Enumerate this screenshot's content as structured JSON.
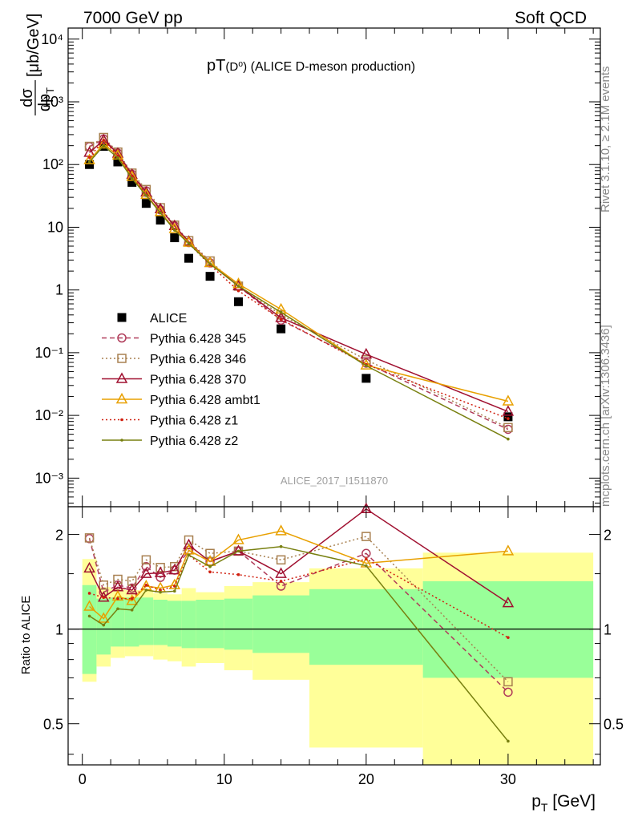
{
  "header": {
    "left_label": "7000 GeV pp",
    "right_label": "Soft QCD"
  },
  "side": {
    "rivet_label": "Rivet 3.1.10, ≥ 2.1M events",
    "source_label": "mcplots.cern.ch [arXiv:1306.3436]"
  },
  "chart_data": [
    {
      "type": "line",
      "panel": "main",
      "title": "pT(D⁰) (ALICE D-meson production)",
      "title_main": "pT",
      "title_paren": "(D⁰)",
      "title_rest": " (ALICE D-meson production)",
      "ylabel": "dσ / dp_T [μb/GeV]",
      "ylabel_num": "dσ",
      "ylabel_den": "dp",
      "ylabel_sub": "T",
      "ylabel_unit": "[μb/GeV]",
      "yscale": "log",
      "xlim": [
        -1,
        36.5
      ],
      "ylim": [
        0.00035,
        15000
      ],
      "x_ticks": [
        0,
        10,
        20,
        30
      ],
      "y_tick_labels": [
        "10⁻³",
        "10⁻²",
        "10⁻¹",
        "1",
        "10",
        "10²",
        "10³",
        "10⁴"
      ],
      "y_tick_values": [
        0.001,
        0.01,
        0.1,
        1,
        10,
        100,
        1000,
        10000
      ],
      "watermark": "ALICE_2017_I1511870",
      "legend_placement": "lower-left",
      "x": [
        0.5,
        1.5,
        2.5,
        3.5,
        4.5,
        5.5,
        6.5,
        7.5,
        9,
        11,
        14,
        20,
        30
      ],
      "series": [
        {
          "name": "ALICE",
          "color": "#000000",
          "marker": "square",
          "dash": "",
          "values": [
            100,
            195,
            110,
            52,
            24,
            13,
            6.8,
            3.2,
            1.65,
            0.65,
            0.24,
            0.039,
            0.0095
          ]
        },
        {
          "name": "Pythia 6.428 345",
          "color": "#b03c5a",
          "marker": "circle",
          "dash": "6,4",
          "values": [
            192,
            255,
            152,
            70,
            38,
            19,
            10.5,
            5.7,
            2.7,
            1.15,
            0.33,
            0.068,
            0.006
          ]
        },
        {
          "name": "Pythia 6.428 346",
          "color": "#a88050",
          "marker": "square-open",
          "dash": "2,3",
          "values": [
            195,
            270,
            158,
            73,
            40,
            20.5,
            10.8,
            6.1,
            2.9,
            1.15,
            0.4,
            0.077,
            0.0064
          ]
        },
        {
          "name": "Pythia 6.428 370",
          "color": "#a01030",
          "marker": "triangle",
          "dash": "",
          "values": [
            155,
            245,
            150,
            69,
            36,
            19.5,
            10.5,
            5.9,
            2.7,
            1.15,
            0.36,
            0.094,
            0.0115
          ]
        },
        {
          "name": "Pythia 6.428 ambt1",
          "color": "#e8a000",
          "marker": "triangle",
          "dash": "",
          "values": [
            118,
            210,
            140,
            64,
            33,
            17.5,
            9.4,
            5.7,
            2.7,
            1.25,
            0.49,
            0.063,
            0.0168
          ]
        },
        {
          "name": "Pythia 6.428 z1",
          "color": "#d02010",
          "marker": "dot",
          "dash": "2,3",
          "values": [
            130,
            245,
            138,
            65,
            33,
            17.3,
            9.3,
            5.5,
            2.5,
            0.97,
            0.34,
            0.065,
            0.0089
          ]
        },
        {
          "name": "Pythia 6.428 z2",
          "color": "#788010",
          "marker": "dot",
          "dash": "",
          "values": [
            110,
            200,
            128,
            60,
            32,
            17.0,
            9.0,
            5.5,
            2.6,
            1.15,
            0.44,
            0.062,
            0.0042
          ]
        }
      ]
    },
    {
      "type": "line",
      "panel": "ratio",
      "ylabel": "Ratio to ALICE",
      "xlabel": "p_T [GeV]",
      "xlabel_main": "p",
      "xlabel_sub": "T",
      "xlabel_unit": " [GeV]",
      "yscale": "log",
      "xlim": [
        -1,
        36.5
      ],
      "ylim": [
        0.37,
        2.45
      ],
      "x_ticks": [
        0,
        10,
        20,
        30
      ],
      "y_tick_labels": [
        "0.5",
        "1",
        "2"
      ],
      "y_tick_values": [
        0.5,
        1,
        2
      ],
      "bands": {
        "bin_edges": [
          0,
          1,
          2,
          3,
          4,
          5,
          6,
          7,
          8,
          10,
          12,
          16,
          24,
          36
        ],
        "inner_high": [
          1.38,
          1.25,
          1.26,
          1.26,
          1.26,
          1.24,
          1.23,
          1.23,
          1.24,
          1.25,
          1.28,
          1.34,
          1.42
        ],
        "inner_low": [
          0.72,
          0.83,
          0.88,
          0.88,
          0.89,
          0.89,
          0.88,
          0.87,
          0.87,
          0.86,
          0.84,
          0.77,
          0.7
        ],
        "outer_high": [
          1.67,
          1.36,
          1.34,
          1.33,
          1.33,
          1.3,
          1.29,
          1.35,
          1.31,
          1.37,
          1.41,
          1.56,
          1.75
        ],
        "outer_low": [
          0.68,
          0.76,
          0.81,
          0.82,
          0.82,
          0.8,
          0.79,
          0.76,
          0.78,
          0.74,
          0.69,
          0.42,
          0.35
        ],
        "inner_color": "#99ff99",
        "outer_color": "#ffff99"
      },
      "x": [
        0.5,
        1.5,
        2.5,
        3.5,
        4.5,
        5.5,
        6.5,
        7.5,
        9,
        11,
        14,
        20,
        30
      ],
      "series": [
        {
          "name": "Pythia 6.428 345",
          "values": [
            1.94,
            1.31,
            1.38,
            1.35,
            1.58,
            1.46,
            1.54,
            1.78,
            1.64,
            1.77,
            1.37,
            1.74,
            0.63
          ]
        },
        {
          "name": "Pythia 6.428 346",
          "values": [
            1.95,
            1.38,
            1.44,
            1.42,
            1.66,
            1.57,
            1.58,
            1.92,
            1.74,
            1.77,
            1.66,
            1.97,
            0.68
          ]
        },
        {
          "name": "Pythia 6.428 370",
          "values": [
            1.56,
            1.26,
            1.36,
            1.33,
            1.5,
            1.51,
            1.54,
            1.85,
            1.64,
            1.77,
            1.5,
            2.41,
            1.21
          ]
        },
        {
          "name": "Pythia 6.428 ambt1",
          "values": [
            1.18,
            1.08,
            1.27,
            1.23,
            1.37,
            1.35,
            1.38,
            1.78,
            1.64,
            1.92,
            2.05,
            1.62,
            1.77
          ]
        },
        {
          "name": "Pythia 6.428 z1",
          "values": [
            1.3,
            1.26,
            1.25,
            1.25,
            1.38,
            1.33,
            1.37,
            1.72,
            1.52,
            1.49,
            1.42,
            1.67,
            0.94
          ]
        },
        {
          "name": "Pythia 6.428 z2",
          "values": [
            1.1,
            1.03,
            1.16,
            1.15,
            1.33,
            1.31,
            1.32,
            1.72,
            1.58,
            1.77,
            1.83,
            1.59,
            0.44
          ]
        }
      ]
    }
  ]
}
